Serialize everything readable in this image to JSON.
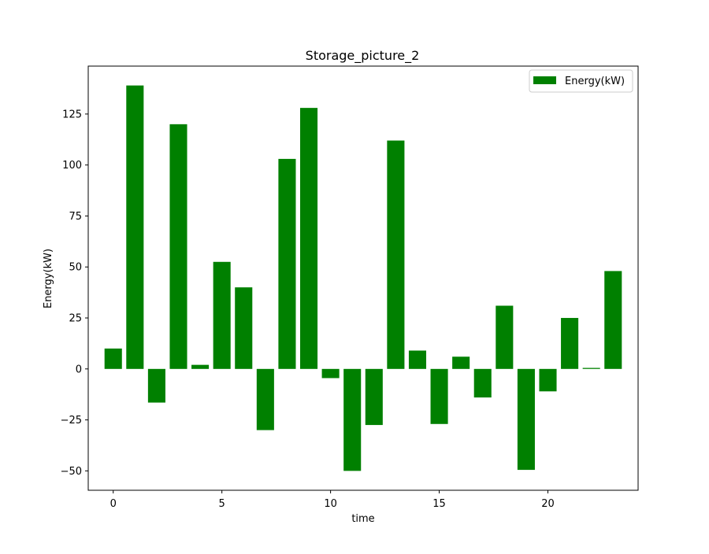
{
  "chart_data": {
    "type": "bar",
    "title": "Storage_picture_2",
    "xlabel": "time",
    "ylabel": "Energy(kW)",
    "x": [
      0,
      1,
      2,
      3,
      4,
      5,
      6,
      7,
      8,
      9,
      10,
      11,
      12,
      13,
      14,
      15,
      16,
      17,
      18,
      19,
      20,
      21,
      22,
      23
    ],
    "series": [
      {
        "name": "Energy(kW)",
        "color": "#008000",
        "values": [
          10.0,
          139.0,
          -16.5,
          120.0,
          2.0,
          52.5,
          40.0,
          -30.0,
          103.0,
          128.0,
          -4.5,
          -50.0,
          -27.5,
          112.0,
          9.0,
          -27.0,
          6.0,
          -14.0,
          31.0,
          -49.5,
          -11.0,
          25.0,
          0.5,
          48.0
        ]
      }
    ],
    "xlim": [
      -1.15,
      24.15
    ],
    "ylim": [
      -59.5,
      148.5
    ],
    "xticks": [
      0,
      5,
      10,
      15,
      20
    ],
    "xtick_labels": [
      "0",
      "5",
      "10",
      "15",
      "20"
    ],
    "yticks": [
      -50,
      -25,
      0,
      25,
      50,
      75,
      100,
      125
    ],
    "ytick_labels": [
      "−50",
      "−25",
      "0",
      "25",
      "50",
      "75",
      "100",
      "125"
    ],
    "grid": false,
    "legend": {
      "position": "top-right",
      "entries": [
        "Energy(kW)"
      ]
    }
  }
}
